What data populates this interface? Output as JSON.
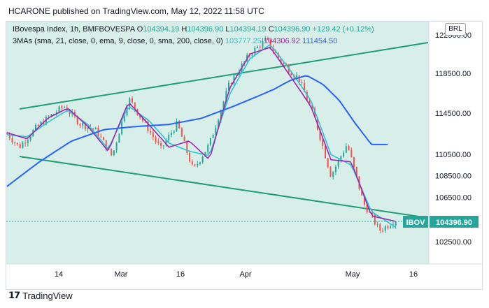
{
  "header": {
    "text": "HCARONE published on TradingView.com, May 12, 2022 11:58 UTC"
  },
  "legend": {
    "line1_prefix": "IBovespa Index, 1h, BMFBOVESPA",
    "open_label": "O",
    "open": "104394.19",
    "high_label": "H",
    "high": "104396.90",
    "low_label": "L",
    "low": "104394.19",
    "close_label": "C",
    "close": "104396.90",
    "change": "+129.42 (+0.12%)",
    "line2_prefix": "3MAs (sma, 21, close, 0, ema, 9, close, 0, sma, 200, close, 0)",
    "ma1": "103777.25",
    "ma2": "104306.92",
    "ma3": "111454.50"
  },
  "currency": "BRL",
  "price_tag": {
    "symbol": "IBOV",
    "value": "104396.90"
  },
  "footer": {
    "brand": "TradingView"
  },
  "colors": {
    "background": "#d8efe9",
    "channel": "#1f9e74",
    "candle_up": "#26a69a",
    "candle_down": "#ef5350",
    "ma_sma21": "#2ec4d4",
    "ma_ema9": "#9c27b0",
    "ma_sma200": "#2962ff",
    "tag": "#26a69a"
  },
  "chart_data": {
    "type": "line",
    "title": "IBovespa Index, 1h, BMFBOVESPA",
    "x_ticks": [
      "14",
      "Mar",
      "16",
      "Apr",
      "May",
      "16"
    ],
    "y_ticks": [
      122500,
      118500,
      114500,
      110500,
      108500,
      106500,
      102500
    ],
    "ylim": [
      100000,
      124000
    ],
    "y_scale": "log",
    "grid": false,
    "series": [
      {
        "name": "price",
        "x": [
          0,
          3,
          7,
          10,
          14,
          18,
          22,
          26,
          30,
          34,
          38,
          42,
          46,
          50,
          55,
          60,
          64,
          68,
          72,
          76,
          80,
          84,
          88,
          92,
          96
        ],
        "values": [
          112500,
          111200,
          113000,
          114000,
          115200,
          113500,
          112800,
          110300,
          116000,
          113500,
          111000,
          113500,
          109000,
          111500,
          117500,
          120500,
          122000,
          119500,
          118000,
          114000,
          108500,
          111500,
          106000,
          103500,
          104397
        ]
      },
      {
        "name": "sma 21",
        "x": [
          0,
          5,
          10,
          15,
          20,
          25,
          30,
          35,
          40,
          45,
          50,
          55,
          60,
          65,
          70,
          75,
          80,
          85,
          90,
          96
        ],
        "values": [
          112400,
          112200,
          113600,
          114800,
          113400,
          111000,
          115200,
          113800,
          111600,
          110800,
          110400,
          116400,
          120000,
          121500,
          118800,
          115800,
          110500,
          109500,
          105200,
          103777
        ]
      },
      {
        "name": "ema 9",
        "x": [
          0,
          5,
          10,
          15,
          20,
          25,
          30,
          35,
          40,
          45,
          50,
          55,
          60,
          65,
          70,
          75,
          80,
          85,
          90,
          96
        ],
        "values": [
          112600,
          112000,
          114000,
          115000,
          113200,
          110800,
          115600,
          113400,
          111200,
          111800,
          110000,
          117000,
          120500,
          121200,
          118200,
          115200,
          110000,
          109800,
          104800,
          104307
        ]
      },
      {
        "name": "sma 200",
        "x": [
          0,
          8,
          16,
          24,
          32,
          40,
          48,
          56,
          62,
          66,
          70,
          74,
          78,
          82,
          86,
          90,
          94
        ],
        "values": [
          107500,
          109800,
          111800,
          112900,
          113200,
          113400,
          114000,
          115200,
          116200,
          116900,
          117800,
          118300,
          117400,
          115800,
          113500,
          111454,
          111454
        ]
      }
    ]
  }
}
